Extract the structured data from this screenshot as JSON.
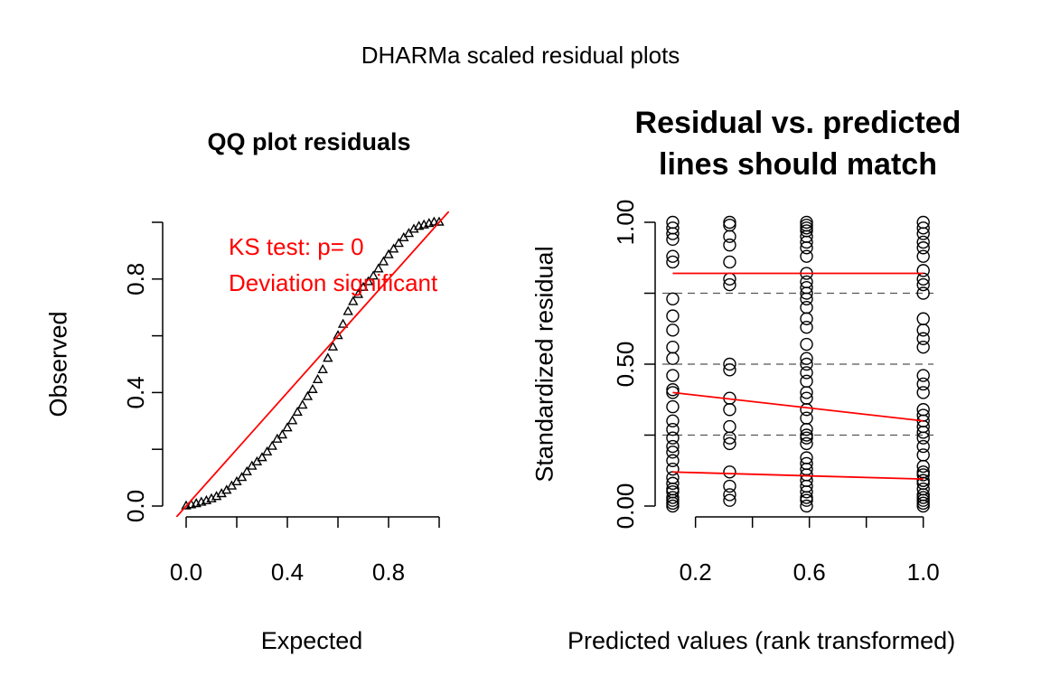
{
  "figure": {
    "title": "DHARMa scaled residual plots"
  },
  "chart_data": [
    {
      "type": "scatter",
      "title": "QQ plot residuals",
      "xlabel": "Expected",
      "ylabel": "Observed",
      "xlim": [
        0,
        1
      ],
      "ylim": [
        0,
        1
      ],
      "xticks": [
        0.0,
        0.2,
        0.4,
        0.6,
        0.8,
        1.0
      ],
      "xtick_labels": [
        "0.0",
        "",
        "0.4",
        "",
        "0.8",
        ""
      ],
      "yticks": [
        0.0,
        0.2,
        0.4,
        0.6,
        0.8,
        1.0
      ],
      "ytick_labels": [
        "0.0",
        "",
        "0.4",
        "",
        "0.8",
        ""
      ],
      "marker": "triangle-open",
      "colors": {
        "points": "#000000",
        "reference_line": "#ff0000",
        "annotation": "#ff0000"
      },
      "reference_line": {
        "slope": 1,
        "intercept": 0
      },
      "annotations": [
        "KS test: p= 0",
        "Deviation  significant"
      ],
      "series": [
        {
          "x": [
            0.0,
            0.02,
            0.04,
            0.06,
            0.08,
            0.1,
            0.12,
            0.14,
            0.16,
            0.18,
            0.2,
            0.22,
            0.24,
            0.26,
            0.28,
            0.3,
            0.32,
            0.34,
            0.36,
            0.38,
            0.4,
            0.42,
            0.44,
            0.46,
            0.48,
            0.5,
            0.52,
            0.54,
            0.56,
            0.58,
            0.6,
            0.62,
            0.64,
            0.66,
            0.68,
            0.7,
            0.72,
            0.74,
            0.76,
            0.78,
            0.8,
            0.82,
            0.84,
            0.86,
            0.88,
            0.9,
            0.92,
            0.94,
            0.96,
            0.98,
            1.0
          ],
          "y": [
            0.0,
            0.004,
            0.008,
            0.013,
            0.018,
            0.025,
            0.033,
            0.043,
            0.055,
            0.07,
            0.085,
            0.1,
            0.12,
            0.14,
            0.155,
            0.17,
            0.19,
            0.21,
            0.235,
            0.25,
            0.275,
            0.3,
            0.33,
            0.355,
            0.385,
            0.41,
            0.445,
            0.48,
            0.52,
            0.56,
            0.6,
            0.64,
            0.685,
            0.72,
            0.745,
            0.77,
            0.79,
            0.81,
            0.835,
            0.86,
            0.885,
            0.905,
            0.925,
            0.945,
            0.96,
            0.975,
            0.985,
            0.99,
            0.995,
            1.0,
            1.0
          ]
        }
      ]
    },
    {
      "type": "scatter",
      "title": "Residual vs. predicted\nlines should match",
      "xlabel": "Predicted values (rank transformed)",
      "ylabel": "Standardized residual",
      "xlim": [
        0.09,
        1.02
      ],
      "ylim": [
        0,
        1
      ],
      "xticks": [
        0.2,
        0.4,
        0.6,
        0.8,
        1.0
      ],
      "xtick_labels": [
        "0.2",
        "",
        "0.6",
        "",
        "1.0"
      ],
      "yticks": [
        0.0,
        0.25,
        0.5,
        0.75,
        1.0
      ],
      "ytick_labels": [
        "0.00",
        "",
        "0.50",
        "",
        "1.00"
      ],
      "marker": "circle-open",
      "colors": {
        "points": "#000000",
        "quantile_lines": "#ff0000",
        "reference_lines": "#555555"
      },
      "reference_levels": [
        0.25,
        0.5,
        0.75
      ],
      "quantile_lines": [
        {
          "x": [
            0.12,
            1.0
          ],
          "y": [
            0.12,
            0.095
          ]
        },
        {
          "x": [
            0.12,
            1.0
          ],
          "y": [
            0.4,
            0.3
          ]
        },
        {
          "x": [
            0.12,
            1.0
          ],
          "y": [
            0.82,
            0.82
          ]
        }
      ],
      "series": [
        {
          "x": 0.12,
          "y": [
            0.0,
            0.01,
            0.02,
            0.03,
            0.05,
            0.06,
            0.08,
            0.1,
            0.13,
            0.16,
            0.19,
            0.21,
            0.24,
            0.27,
            0.3,
            0.35,
            0.4,
            0.41,
            0.46,
            0.52,
            0.56,
            0.62,
            0.67,
            0.73,
            0.86,
            0.88,
            0.94,
            0.96,
            0.98,
            1.0
          ]
        },
        {
          "x": 0.32,
          "y": [
            0.02,
            0.04,
            0.07,
            0.12,
            0.22,
            0.24,
            0.28,
            0.34,
            0.38,
            0.48,
            0.5,
            0.78,
            0.8,
            0.86,
            0.92,
            0.95,
            0.99,
            1.0
          ]
        },
        {
          "x": 0.59,
          "y": [
            0.0,
            0.02,
            0.03,
            0.05,
            0.07,
            0.09,
            0.11,
            0.13,
            0.15,
            0.17,
            0.22,
            0.24,
            0.25,
            0.27,
            0.31,
            0.34,
            0.38,
            0.4,
            0.44,
            0.47,
            0.5,
            0.52,
            0.57,
            0.63,
            0.66,
            0.7,
            0.73,
            0.75,
            0.77,
            0.79,
            0.82,
            0.88,
            0.91,
            0.93,
            0.95,
            0.97,
            0.98,
            0.99,
            1.0
          ]
        },
        {
          "x": 1.0,
          "y": [
            0.0,
            0.01,
            0.02,
            0.03,
            0.04,
            0.06,
            0.08,
            0.09,
            0.11,
            0.12,
            0.14,
            0.18,
            0.21,
            0.24,
            0.26,
            0.28,
            0.3,
            0.32,
            0.34,
            0.4,
            0.43,
            0.46,
            0.56,
            0.59,
            0.62,
            0.66,
            0.75,
            0.78,
            0.8,
            0.83,
            0.88,
            0.91,
            0.93,
            0.96,
            0.98,
            1.0
          ]
        }
      ]
    }
  ]
}
